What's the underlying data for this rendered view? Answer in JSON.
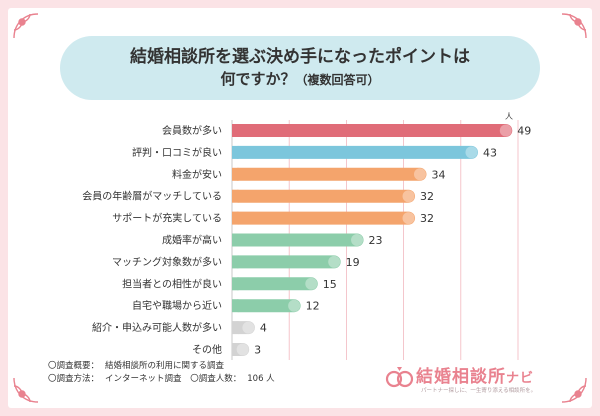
{
  "title": {
    "line1": "結婚相談所を選ぶ決め手になったポイントは",
    "line2_main": "何ですか？",
    "line2_sub": "（複数回答可）"
  },
  "unit_label": "人",
  "chart_data": {
    "type": "bar",
    "orientation": "horizontal",
    "categories": [
      "会員数が多い",
      "評判・口コミが良い",
      "料金が安い",
      "会員の年齢層がマッチしている",
      "サポートが充実している",
      "成婚率が高い",
      "マッチング対象数が多い",
      "担当者との相性が良い",
      "自宅や職場から近い",
      "紹介・申込み可能人数が多い",
      "その他"
    ],
    "values": [
      49,
      43,
      34,
      32,
      32,
      23,
      19,
      15,
      12,
      4,
      3
    ],
    "colors": [
      "#e06c78",
      "#7cc6dc",
      "#f4a46c",
      "#f4a46c",
      "#f4a46c",
      "#8ccdaa",
      "#8ccdaa",
      "#8ccdaa",
      "#8ccdaa",
      "#d3d3d3",
      "#d3d3d3"
    ],
    "xlim": [
      0,
      50
    ],
    "grid": true,
    "ylabel": "",
    "xlabel": ""
  },
  "notes": {
    "survey_summary_label": "〇調査概要：",
    "survey_summary_value": "結婚相談所の利用に関する調査",
    "method_label": "〇調査方法：",
    "method_value": "インターネット調査",
    "respondents_label": "〇調査人数：",
    "respondents_value": "106 人"
  },
  "logo": {
    "name": "結婚相談所",
    "suffix": "ナビ",
    "tagline": "パートナー探しに、一生寄り添える相談所を。"
  },
  "colors": {
    "frame": "#fbe3e6",
    "title_bg": "#cfeaef",
    "accent_pink": "#e9828f",
    "grid": "#f2b8bf"
  }
}
